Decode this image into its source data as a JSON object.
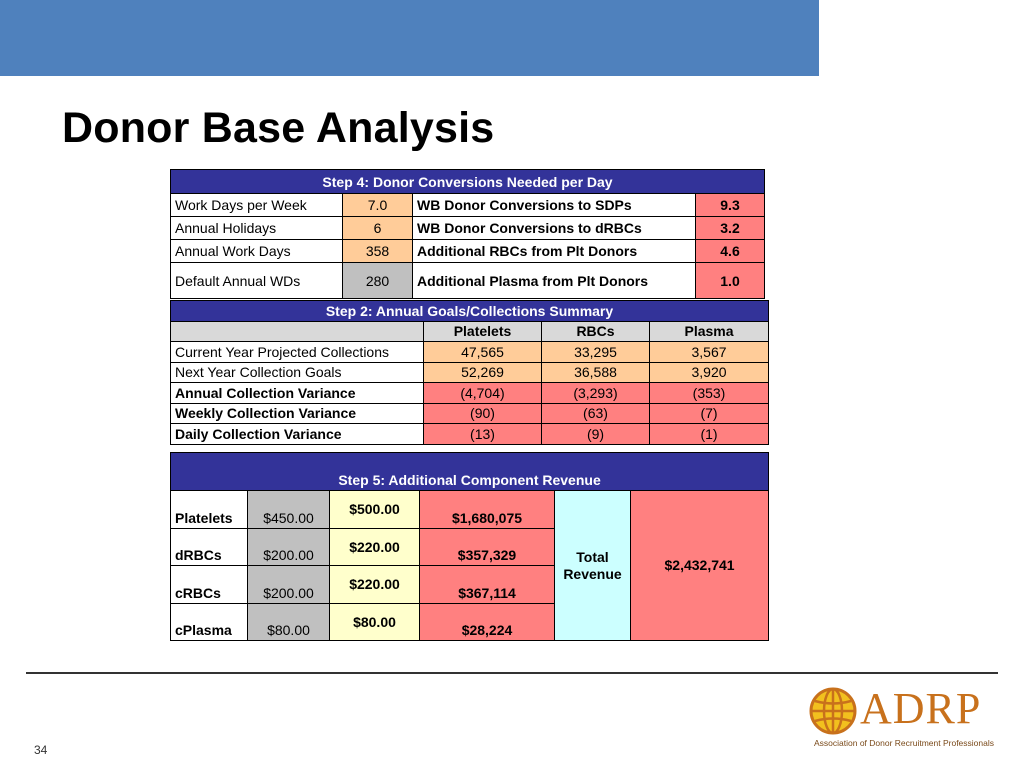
{
  "slide": {
    "title": "Donor Base Analysis",
    "page_number": "34",
    "colors": {
      "top_bar": "#4f81bd",
      "table_header": "#333399",
      "peach": "#ffcc99",
      "red": "#ff8080",
      "cyan": "#ccffff",
      "light_yellow": "#ffffcc"
    }
  },
  "step4": {
    "title": "Step 4: Donor Conversions Needed per Day",
    "rows": [
      {
        "label": "Work Days per Week",
        "value": "7.0",
        "metric": "WB Donor Conversions to SDPs",
        "result": "9.3"
      },
      {
        "label": "Annual Holidays",
        "value": "6",
        "metric": "WB Donor Conversions to dRBCs",
        "result": "3.2"
      },
      {
        "label": "Annual Work Days",
        "value": "358",
        "metric": "Additional RBCs from Plt Donors",
        "result": "4.6"
      },
      {
        "label": "Default Annual WDs",
        "value": "280",
        "metric": "Additional Plasma from Plt Donors",
        "result": "1.0"
      }
    ]
  },
  "step2": {
    "title": "Step 2: Annual Goals/Collections Summary",
    "columns": [
      "Platelets",
      "RBCs",
      "Plasma"
    ],
    "rows": [
      {
        "label": "Current Year Projected Collections",
        "values": [
          "47,565",
          "33,295",
          "3,567"
        ]
      },
      {
        "label": "Next Year Collection Goals",
        "values": [
          "52,269",
          "36,588",
          "3,920"
        ]
      },
      {
        "label": "Annual Collection Variance",
        "values": [
          "(4,704)",
          "(3,293)",
          "(353)"
        ]
      },
      {
        "label": "Weekly Collection Variance",
        "values": [
          "(90)",
          "(63)",
          "(7)"
        ]
      },
      {
        "label": "Daily Collection Variance",
        "values": [
          "(13)",
          "(9)",
          "(1)"
        ]
      }
    ]
  },
  "step5": {
    "title": "Step 5: Additional Component Revenue",
    "rows": [
      {
        "component": "Platelets",
        "base": "$450.00",
        "price": "$500.00",
        "revenue": "$1,680,075"
      },
      {
        "component": "dRBCs",
        "base": "$200.00",
        "price": "$220.00",
        "revenue": "$357,329"
      },
      {
        "component": "cRBCs",
        "base": "$200.00",
        "price": "$220.00",
        "revenue": "$367,114"
      },
      {
        "component": "cPlasma",
        "base": "$80.00",
        "price": "$80.00",
        "revenue": "$28,224"
      }
    ],
    "total_label": "Total Revenue",
    "total_value": "$2,432,741"
  },
  "logo": {
    "name": "ADRP",
    "tagline": "Association of Donor Recruitment Professionals",
    "icon": "globe-icon"
  }
}
